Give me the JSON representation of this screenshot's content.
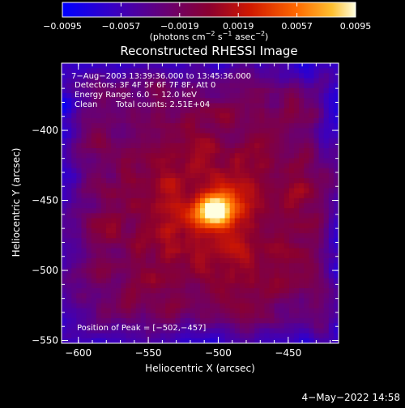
{
  "chart_data": {
    "type": "heatmap",
    "title": "Reconstructed RHESSI Image",
    "xlabel": "Heliocentric X (arcsec)",
    "ylabel": "Heliocentric Y (arcsec)",
    "xlim": [
      -612,
      -414
    ],
    "ylim": [
      -552,
      -352
    ],
    "x_ticks": [
      -600,
      -550,
      -500,
      -450
    ],
    "x_tick_labels": [
      "−600",
      "−550",
      "−500",
      "−450"
    ],
    "y_ticks": [
      -550,
      -500,
      -450,
      -400
    ],
    "y_tick_labels": [
      "−550",
      "−500",
      "−450",
      "−400"
    ],
    "colorbar": {
      "min": -0.0095,
      "max": 0.0095,
      "tick_values": [
        -0.0095,
        -0.0057,
        -0.0019,
        0.0019,
        0.0057,
        0.0095
      ],
      "tick_labels": [
        "−0.0095",
        "−0.0057",
        "−0.0019",
        "0.0019",
        "0.0057",
        "0.0095"
      ],
      "unit_prefix": "(photons cm",
      "unit_exp1": "−2",
      "unit_mid": " s",
      "unit_exp2": "−1",
      "unit_mid2": " asec",
      "unit_exp3": "−2",
      "unit_suffix": ")"
    },
    "annotations": {
      "time_range": "7−Aug−2003 13:39:36.000 to 13:45:36.000",
      "detectors": "Detectors: 3F 4F 5F 6F 7F 8F, Att 0",
      "energy_range": "Energy Range: 6.0 − 12.0 keV",
      "clean_label": "Clean",
      "total_counts": "Total counts: 2.51E+04",
      "peak_position": "Position of Peak = [−502,−457]"
    },
    "peak": [
      -502,
      -457
    ],
    "peak_value": 0.0095,
    "colors": [
      "#0000ff",
      "#4b0090",
      "#7a0040",
      "#c01000",
      "#ff5000",
      "#ffb020",
      "#ffffe0"
    ]
  },
  "footer": {
    "timestamp": "4−May−2022 14:58"
  }
}
